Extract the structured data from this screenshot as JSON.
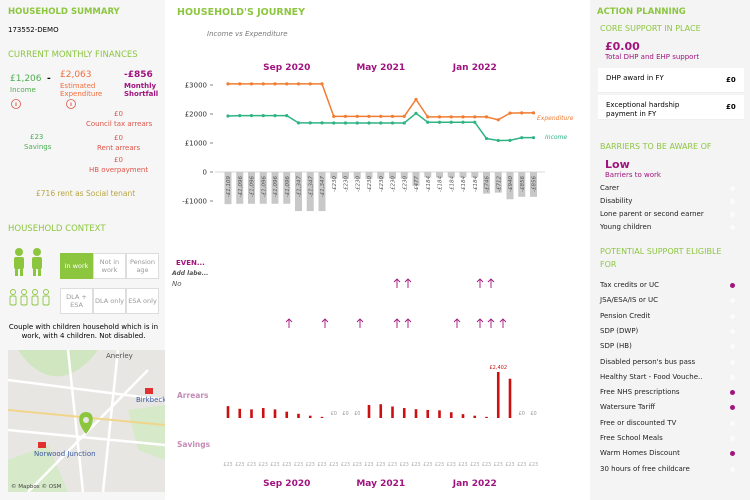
{
  "summary": {
    "title": "HOUSEHOLD SUMMARY",
    "id": "173552-DEMO",
    "finances_title": "CURRENT MONTHLY FINANCES",
    "income": {
      "value": "£1,206",
      "label": "Income"
    },
    "minus": "-",
    "expenditure": {
      "value": "£2,063",
      "label": "Estimated Expenditure"
    },
    "shortfall": {
      "value": "-£856",
      "label": "Monthly Shortfall"
    },
    "council_tax": {
      "value": "£0",
      "label": "Council tax arrears"
    },
    "savings": {
      "value": "£23",
      "label": "Savings"
    },
    "rent": {
      "value": "£0",
      "label": "Rent arrears"
    },
    "hb": {
      "value": "£0",
      "label": "HB overpayment"
    },
    "rent_note": "£716 rent as Social tenant"
  },
  "context": {
    "title": "HOUSEHOLD CONTEXT",
    "work": [
      "In work",
      "Not in work",
      "Pension age"
    ],
    "work_active": 0,
    "disability": [
      "DLA + ESA",
      "DLA only",
      "ESA only"
    ],
    "description": "Couple with children household which is in work, with 4 children. Not disabled.",
    "map": {
      "places": [
        "Anerley",
        "Birkbeck",
        "Norwood Junction"
      ],
      "credit": "© Mapbox © OSM"
    }
  },
  "chart_data": {
    "type": "line",
    "title": "HOUSEHOLD'S JOURNEY",
    "subtitle": "Income vs Expenditure",
    "categories": [
      null,
      null,
      null,
      null,
      null,
      "Sep 2020",
      null,
      null,
      null,
      null,
      null,
      null,
      null,
      "May 2021",
      null,
      null,
      null,
      null,
      null,
      null,
      null,
      "Jan 2022",
      null,
      null,
      null,
      null,
      null
    ],
    "ylim": [
      -1300,
      3300
    ],
    "yticks": [
      {
        "value": 3000,
        "label": "£3000"
      },
      {
        "value": 2000,
        "label": "£2000"
      },
      {
        "value": 1000,
        "label": "£1000"
      },
      0,
      {
        "value": -1000,
        "label": "-£1000"
      }
    ],
    "series": [
      {
        "name": "Expenditure",
        "color": "#f07d32",
        "values": [
          3040,
          3040,
          3040,
          3040,
          3040,
          3040,
          3040,
          3040,
          3040,
          1920,
          1920,
          1920,
          1920,
          1920,
          1920,
          1920,
          2500,
          1900,
          1900,
          1900,
          1900,
          1900,
          1900,
          1800,
          2030,
          2040,
          2040
        ]
      },
      {
        "name": "Income",
        "color": "#2fb383",
        "values": [
          1931,
          1944,
          1944,
          1944,
          1944,
          1944,
          1693,
          1693,
          1693,
          1690,
          1690,
          1690,
          1690,
          1690,
          1690,
          1690,
          2023,
          1716,
          1716,
          1716,
          1716,
          1716,
          1154,
          1088,
          1090,
          1184,
          1184
        ]
      }
    ],
    "shortfall": {
      "color": "#c8c8c8",
      "values": [
        -1109,
        -1096,
        -1096,
        -1096,
        -1096,
        -1096,
        -1347,
        -1347,
        -1347,
        -230,
        -230,
        -230,
        -230,
        -230,
        -230,
        -230,
        -477,
        -184,
        -184,
        -184,
        -184,
        -184,
        -746,
        -712,
        -940,
        -856,
        -856
      ],
      "value_labels": [
        "-£1,109",
        "-£1,096",
        "-£1,096",
        "-£1,096",
        "-£1,096",
        "-£1,096",
        "-£1,347",
        "-£1,347",
        "-£1,347",
        "-£230",
        "-£230",
        "-£230",
        "-£230",
        "-£230",
        "-£230",
        "-£230",
        "-£477",
        "-£184",
        "-£184",
        "-£184",
        "-£184",
        "-£184",
        "-£746",
        "-£712",
        "-£940",
        "-£856",
        "-£856"
      ]
    },
    "events": {
      "label": "EVEN...",
      "add_label": "Add labe...",
      "no": "No"
    },
    "arrears": {
      "label": "Arrears",
      "color": "#cc1010",
      "values": [
        620,
        480,
        450,
        520,
        450,
        330,
        220,
        120,
        60,
        0,
        0,
        0,
        680,
        720,
        600,
        520,
        460,
        420,
        400,
        300,
        200,
        120,
        60,
        2402,
        2050,
        0,
        0
      ],
      "value_labels": [
        null,
        null,
        null,
        null,
        null,
        null,
        null,
        null,
        null,
        "£0",
        "£0",
        "£0",
        null,
        null,
        null,
        null,
        null,
        null,
        null,
        null,
        null,
        null,
        null,
        "£2,402",
        null,
        "£0",
        "£0"
      ]
    },
    "savings": {
      "label": "Savings",
      "values": [
        23,
        23,
        23,
        23,
        23,
        23,
        23,
        23,
        23,
        23,
        23,
        23,
        23,
        23,
        23,
        23,
        23,
        23,
        23,
        23,
        23,
        23,
        23,
        23,
        23,
        23,
        23
      ],
      "value_labels": [
        "£23",
        "£23",
        "£23",
        "£23",
        "£23",
        "£23",
        "£23",
        "£23",
        "£23",
        "£23",
        "£23",
        "£23",
        "£23",
        "£23",
        "£23",
        "£23",
        "£23",
        "£23",
        "£23",
        "£23",
        "£23",
        "£23",
        "£23",
        "£23",
        "£23",
        "£23",
        "£23"
      ]
    }
  },
  "action": {
    "title": "ACTION PLANNING",
    "core_title": "CORE SUPPORT IN PLACE",
    "core_total": "£0.00",
    "core_total_label": "Total DHP and EHP support",
    "core_rows": [
      {
        "label": "DHP award in FY",
        "value": "£0"
      },
      {
        "label": "Exceptional hardship payment in FY",
        "value": "£0"
      }
    ],
    "barriers_title": "BARRIERS TO BE AWARE OF",
    "barrier_level": "Low",
    "barrier_level_label": "Barriers to work",
    "barriers": [
      {
        "label": "Carer",
        "flag": false
      },
      {
        "label": "Disability",
        "flag": false
      },
      {
        "label": "Lone parent or second earner",
        "flag": false
      },
      {
        "label": "Young children",
        "flag": false
      }
    ],
    "eligible_title": "POTENTIAL SUPPORT ELIGIBLE FOR",
    "eligible": [
      {
        "label": "Tax credits or UC",
        "flag": true
      },
      {
        "label": "JSA/ESA/IS or UC",
        "flag": false
      },
      {
        "label": "Pension Credit",
        "flag": false
      },
      {
        "label": "SDP (DWP)",
        "flag": false
      },
      {
        "label": "SDP (HB)",
        "flag": false
      },
      {
        "label": "Disabled person's bus pass",
        "flag": false
      },
      {
        "label": "Healthy Start - Food Vouche..",
        "flag": false
      },
      {
        "label": "Free NHS prescriptions",
        "flag": true
      },
      {
        "label": "Watersure Tariff",
        "flag": true
      },
      {
        "label": "Free or discounted TV",
        "flag": false
      },
      {
        "label": "Free School Meals",
        "flag": false
      },
      {
        "label": "Warm Homes Discount",
        "flag": true
      },
      {
        "label": "30 hours of free childcare",
        "flag": false
      }
    ]
  }
}
